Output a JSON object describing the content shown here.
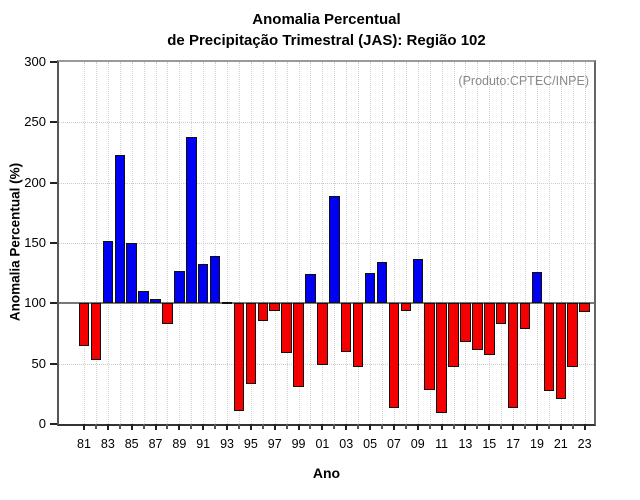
{
  "title": {
    "line1": "Anomalia Percentual",
    "line2": "de Precipitação Trimestral (JAS): Região 102"
  },
  "annotation": "(Produto:CPTEC/INPE)",
  "chart_data": {
    "type": "bar",
    "title": "Anomalia Percentual de Precipitação Trimestral (JAS): Região 102",
    "xlabel": "Ano",
    "ylabel": "Anomalia Percentual (%)",
    "ylim": [
      0,
      300
    ],
    "yticks": [
      0,
      50,
      100,
      150,
      200,
      250,
      300
    ],
    "baseline": 100,
    "grid": "dotted, vertical line at every year, horizontal at 50/150/200/250",
    "legend": "none",
    "x": [
      1981,
      1982,
      1983,
      1984,
      1985,
      1986,
      1987,
      1988,
      1989,
      1990,
      1991,
      1992,
      1993,
      1994,
      1995,
      1996,
      1997,
      1998,
      1999,
      2000,
      2001,
      2002,
      2003,
      2004,
      2005,
      2006,
      2007,
      2008,
      2009,
      2010,
      2011,
      2012,
      2013,
      2014,
      2015,
      2016,
      2017,
      2018,
      2019,
      2020,
      2021,
      2022,
      2023
    ],
    "xtick_labels": [
      "81",
      "83",
      "85",
      "87",
      "89",
      "91",
      "93",
      "95",
      "97",
      "99",
      "01",
      "03",
      "05",
      "07",
      "09",
      "11",
      "13",
      "15",
      "17",
      "19",
      "21",
      "23"
    ],
    "values": [
      65,
      53,
      152,
      223,
      150,
      110,
      104,
      83,
      127,
      238,
      133,
      139,
      101,
      11,
      33,
      85,
      94,
      59,
      31,
      124,
      49,
      189,
      60,
      47,
      125,
      134,
      13,
      94,
      137,
      28,
      9,
      47,
      68,
      61,
      57,
      83,
      13,
      79,
      126,
      27,
      21,
      47,
      93
    ],
    "colors": {
      "above_baseline": "#0000f2",
      "below_baseline": "#f40000",
      "bar_border": "#101010",
      "baseline_line": "#787878",
      "annotation_text": "#8a8a8a"
    }
  }
}
